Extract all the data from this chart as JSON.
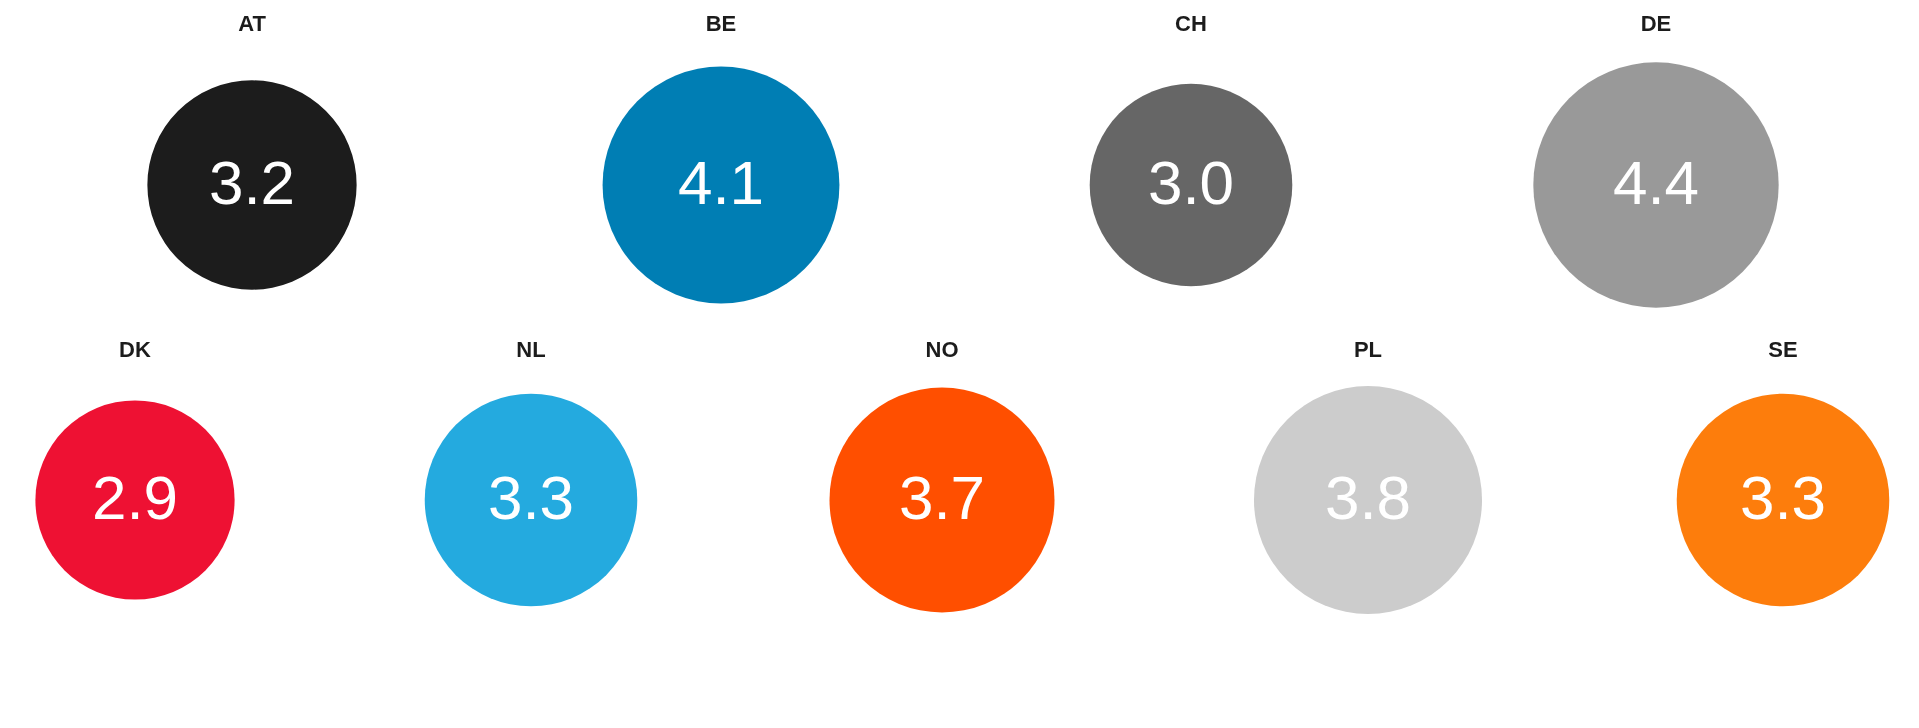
{
  "chart_data": {
    "type": "other",
    "categories": [
      "AT",
      "BE",
      "CH",
      "DE",
      "DK",
      "NL",
      "NO",
      "PL",
      "SE"
    ],
    "values": [
      3.2,
      4.1,
      3.0,
      4.4,
      2.9,
      3.3,
      3.7,
      3.8,
      3.3
    ],
    "value_labels": [
      "3.2",
      "4.1",
      "3.0",
      "4.4",
      "2.9",
      "3.3",
      "3.7",
      "3.8",
      "3.3"
    ],
    "colors": [
      "#1c1c1c",
      "#007eb4",
      "#666666",
      "#999999",
      "#ee1133",
      "#24aadf",
      "#ff4f00",
      "#cccccc",
      "#fd7d0c"
    ]
  }
}
